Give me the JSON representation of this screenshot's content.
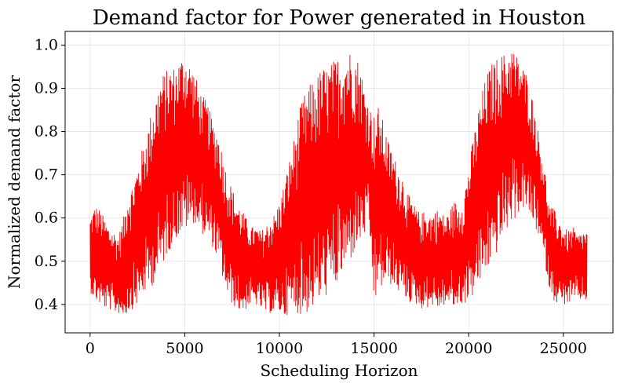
{
  "chart_data": {
    "type": "line",
    "title": "Demand factor for Power generated in Houston",
    "xlabel": "Scheduling Horizon",
    "ylabel": "Normalized demand factor",
    "xlim": [
      -1320,
      27620
    ],
    "ylim": [
      0.3344,
      1.0316
    ],
    "x_ticks": [
      0,
      5000,
      10000,
      15000,
      20000,
      25000
    ],
    "y_ticks": [
      0.4,
      0.5,
      0.6,
      0.7,
      0.8,
      0.9,
      1.0
    ],
    "x_tick_labels": [
      "0",
      "5000",
      "10000",
      "15000",
      "20000",
      "25000"
    ],
    "y_tick_labels": [
      "0.4",
      "0.5",
      "0.6",
      "0.7",
      "0.8",
      "0.9",
      "1.0"
    ],
    "grid": true,
    "series": [
      {
        "color": "#ff0000",
        "x_start": 0,
        "x_step": 250,
        "envelope_low": [
          0.43,
          0.41,
          0.4,
          0.39,
          0.39,
          0.38,
          0.38,
          0.37,
          0.38,
          0.39,
          0.4,
          0.42,
          0.43,
          0.44,
          0.46,
          0.48,
          0.51,
          0.53,
          0.55,
          0.56,
          0.57,
          0.58,
          0.59,
          0.57,
          0.56,
          0.55,
          0.53,
          0.5,
          0.46,
          0.42,
          0.4,
          0.39,
          0.38,
          0.39,
          0.4,
          0.4,
          0.39,
          0.38,
          0.38,
          0.38,
          0.38,
          0.37,
          0.38,
          0.38,
          0.38,
          0.37,
          0.38,
          0.39,
          0.4,
          0.41,
          0.42,
          0.43,
          0.44,
          0.46,
          0.48,
          0.5,
          0.52,
          0.54,
          0.56,
          0.57,
          0.4,
          0.43,
          0.44,
          0.45,
          0.44,
          0.43,
          0.42,
          0.41,
          0.4,
          0.4,
          0.39,
          0.39,
          0.4,
          0.39,
          0.39,
          0.4,
          0.4,
          0.39,
          0.4,
          0.4,
          0.41,
          0.42,
          0.44,
          0.46,
          0.48,
          0.5,
          0.52,
          0.55,
          0.57,
          0.59,
          0.6,
          0.62,
          0.62,
          0.6,
          0.58,
          0.55,
          0.5,
          0.44,
          0.41,
          0.4,
          0.4,
          0.4,
          0.41,
          0.41,
          0.41,
          0.41
        ],
        "envelope_high": [
          0.6,
          0.63,
          0.62,
          0.6,
          0.58,
          0.57,
          0.56,
          0.6,
          0.66,
          0.68,
          0.72,
          0.76,
          0.8,
          0.85,
          0.89,
          0.93,
          0.94,
          0.95,
          0.95,
          0.97,
          0.98,
          0.96,
          0.94,
          0.9,
          0.88,
          0.86,
          0.82,
          0.8,
          0.75,
          0.7,
          0.67,
          0.64,
          0.62,
          0.6,
          0.58,
          0.58,
          0.57,
          0.58,
          0.6,
          0.61,
          0.64,
          0.68,
          0.73,
          0.78,
          0.84,
          0.88,
          0.9,
          0.92,
          0.93,
          0.95,
          0.95,
          0.96,
          0.97,
          0.98,
          0.99,
          0.99,
          0.98,
          0.96,
          0.9,
          0.86,
          0.84,
          0.86,
          0.82,
          0.78,
          0.75,
          0.72,
          0.7,
          0.66,
          0.64,
          0.62,
          0.61,
          0.62,
          0.61,
          0.62,
          0.62,
          0.6,
          0.62,
          0.64,
          0.63,
          0.66,
          0.72,
          0.79,
          0.85,
          0.9,
          0.94,
          0.96,
          0.97,
          0.98,
          0.98,
          1.0,
          0.98,
          0.96,
          0.94,
          0.9,
          0.85,
          0.78,
          0.72,
          0.63,
          0.62,
          0.6,
          0.58,
          0.57,
          0.58,
          0.56,
          0.57,
          0.57
        ]
      }
    ]
  }
}
